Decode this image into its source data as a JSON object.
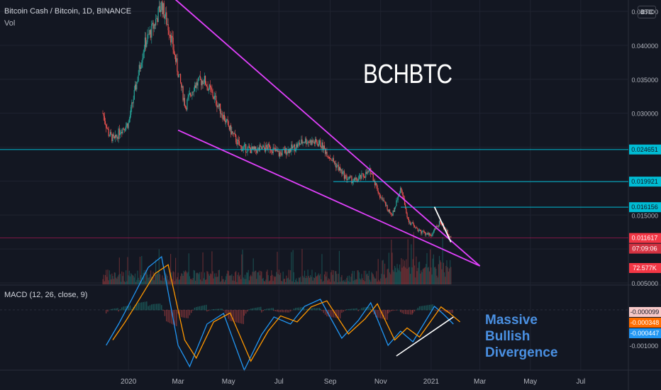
{
  "header": {
    "title": "Bitcoin Cash / Bitcoin, 1D, BINANCE",
    "vol_label": "Vol",
    "currency_badge": "BTC"
  },
  "annotations": {
    "big_label": "BCHBTC",
    "divergence_text": [
      "Massive",
      "Bullish",
      "Divergence"
    ]
  },
  "macd": {
    "label": "MACD (12, 26, close, 9)",
    "value_badges": [
      {
        "text": "-0.000099",
        "bg": "#f7c9c9",
        "fg": "#131722"
      },
      {
        "text": "-0.000348",
        "bg": "#ff6d00",
        "fg": "#ffffff"
      },
      {
        "text": "-0.000447",
        "bg": "#2196f3",
        "fg": "#ffffff"
      }
    ],
    "axis_ticks": [
      "0.000000",
      "-0.001000"
    ]
  },
  "price_axis": {
    "ticks": [
      "0.045000",
      "0.040000",
      "0.035000",
      "0.030000",
      "0.025000",
      "0.020000",
      "0.015000",
      "0.010000",
      "0.005000"
    ],
    "level_badges": [
      {
        "text": "0.024651",
        "value": 0.024651,
        "color": "#00bcd4"
      },
      {
        "text": "0.019921",
        "value": 0.019921,
        "color": "#00bcd4"
      },
      {
        "text": "0.016156",
        "value": 0.016156,
        "color": "#00bcd4"
      }
    ],
    "last_price": "0.011617",
    "countdown": "07:09:06",
    "volume_badge": "72.577K"
  },
  "time_axis": [
    "2020",
    "Mar",
    "May",
    "Jul",
    "Sep",
    "Nov",
    "2021",
    "Mar",
    "May",
    "Jul"
  ],
  "colors": {
    "background": "#131722",
    "up": "#26a69a",
    "down": "#ef5350",
    "wedge": "#e040fb",
    "level": "#00bcd4",
    "macd": "#2196f3",
    "signal": "#ff9800",
    "last_price": "#f23645",
    "divergence_text": "#4a90e2"
  },
  "chart_data": {
    "type": "candlestick",
    "symbol": "BCHBTC",
    "ylim": [
      0.004,
      0.05
    ],
    "price_path": [
      {
        "date": "2019-12-01",
        "price": 0.03
      },
      {
        "date": "2019-12-08",
        "price": 0.027
      },
      {
        "date": "2019-12-15",
        "price": 0.026
      },
      {
        "date": "2019-12-22",
        "price": 0.0275
      },
      {
        "date": "2020-01-01",
        "price": 0.0285
      },
      {
        "date": "2020-01-10",
        "price": 0.034
      },
      {
        "date": "2020-01-20",
        "price": 0.04
      },
      {
        "date": "2020-02-01",
        "price": 0.043
      },
      {
        "date": "2020-02-10",
        "price": 0.046
      },
      {
        "date": "2020-02-20",
        "price": 0.042
      },
      {
        "date": "2020-03-01",
        "price": 0.036
      },
      {
        "date": "2020-03-10",
        "price": 0.031
      },
      {
        "date": "2020-03-20",
        "price": 0.034
      },
      {
        "date": "2020-04-01",
        "price": 0.035
      },
      {
        "date": "2020-04-15",
        "price": 0.032
      },
      {
        "date": "2020-05-01",
        "price": 0.028
      },
      {
        "date": "2020-05-15",
        "price": 0.025
      },
      {
        "date": "2020-06-01",
        "price": 0.0245
      },
      {
        "date": "2020-06-20",
        "price": 0.025
      },
      {
        "date": "2020-07-01",
        "price": 0.024
      },
      {
        "date": "2020-07-20",
        "price": 0.025
      },
      {
        "date": "2020-08-01",
        "price": 0.026
      },
      {
        "date": "2020-08-20",
        "price": 0.0255
      },
      {
        "date": "2020-09-01",
        "price": 0.0235
      },
      {
        "date": "2020-09-20",
        "price": 0.0205
      },
      {
        "date": "2020-10-01",
        "price": 0.02
      },
      {
        "date": "2020-10-20",
        "price": 0.0215
      },
      {
        "date": "2020-11-01",
        "price": 0.0175
      },
      {
        "date": "2020-11-15",
        "price": 0.015
      },
      {
        "date": "2020-11-25",
        "price": 0.019
      },
      {
        "date": "2020-12-05",
        "price": 0.014
      },
      {
        "date": "2020-12-20",
        "price": 0.0125
      },
      {
        "date": "2021-01-01",
        "price": 0.012
      },
      {
        "date": "2021-01-12",
        "price": 0.014
      },
      {
        "date": "2021-01-25",
        "price": 0.0116
      }
    ],
    "trendlines": [
      {
        "name": "upper wedge",
        "from": {
          "date": "2020-02-15",
          "price": 0.048
        },
        "to": {
          "date": "2021-03-01",
          "price": 0.0075
        }
      },
      {
        "name": "lower wedge",
        "from": {
          "date": "2020-03-01",
          "price": 0.0275
        },
        "to": {
          "date": "2021-03-01",
          "price": 0.0075
        }
      },
      {
        "name": "local downtrend",
        "from": {
          "date": "2021-01-05",
          "price": 0.0162
        },
        "to": {
          "date": "2021-01-25",
          "price": 0.011
        }
      }
    ],
    "horizontal_levels": [
      0.024651,
      0.019921,
      0.016156
    ],
    "volume_last": "72.577K",
    "macd_series": [
      {
        "name": "MACD",
        "color": "#2196f3"
      },
      {
        "name": "Signal",
        "color": "#ff9800"
      }
    ],
    "divergence_line": {
      "from": {
        "date": "2020-11-20",
        "value": -0.0013
      },
      "to": {
        "date": "2021-01-28",
        "value": -0.0002
      }
    }
  }
}
